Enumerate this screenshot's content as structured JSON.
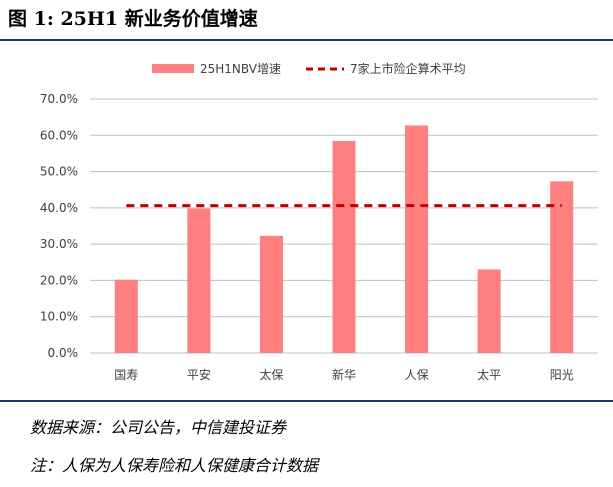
{
  "figure": {
    "title": "图 1: 25H1 新业务价值增速",
    "source": "数据来源：公司公告，中信建投证券",
    "note": "注：人保为人保寿险和人保健康合计数据"
  },
  "colors": {
    "bar": "#ff7f7f",
    "average_line": "#c00000",
    "rule": "#1f3864",
    "grid": "#bfbfbf"
  },
  "chart_data": {
    "type": "bar",
    "title": "",
    "xlabel": "",
    "ylabel": "",
    "categories": [
      "国寿",
      "平安",
      "太保",
      "新华",
      "人保",
      "太平",
      "阳光"
    ],
    "series": [
      {
        "name": "25H1NBV增速",
        "type": "bar",
        "values": [
          20.2,
          39.8,
          32.3,
          58.4,
          62.7,
          23.0,
          47.3
        ]
      },
      {
        "name": "7家上市险企算术平均",
        "type": "line",
        "style": "dashed",
        "values": [
          40.6,
          40.6,
          40.6,
          40.6,
          40.6,
          40.6,
          40.6
        ]
      }
    ],
    "ylim": [
      0,
      70
    ],
    "yticks": [
      0,
      10,
      20,
      30,
      40,
      50,
      60,
      70
    ],
    "ytick_format": "percent_1dp",
    "ytick_labels": [
      "0.0%",
      "10.0%",
      "20.0%",
      "30.0%",
      "40.0%",
      "50.0%",
      "60.0%",
      "70.0%"
    ],
    "grid": true,
    "legend": "top-center"
  }
}
